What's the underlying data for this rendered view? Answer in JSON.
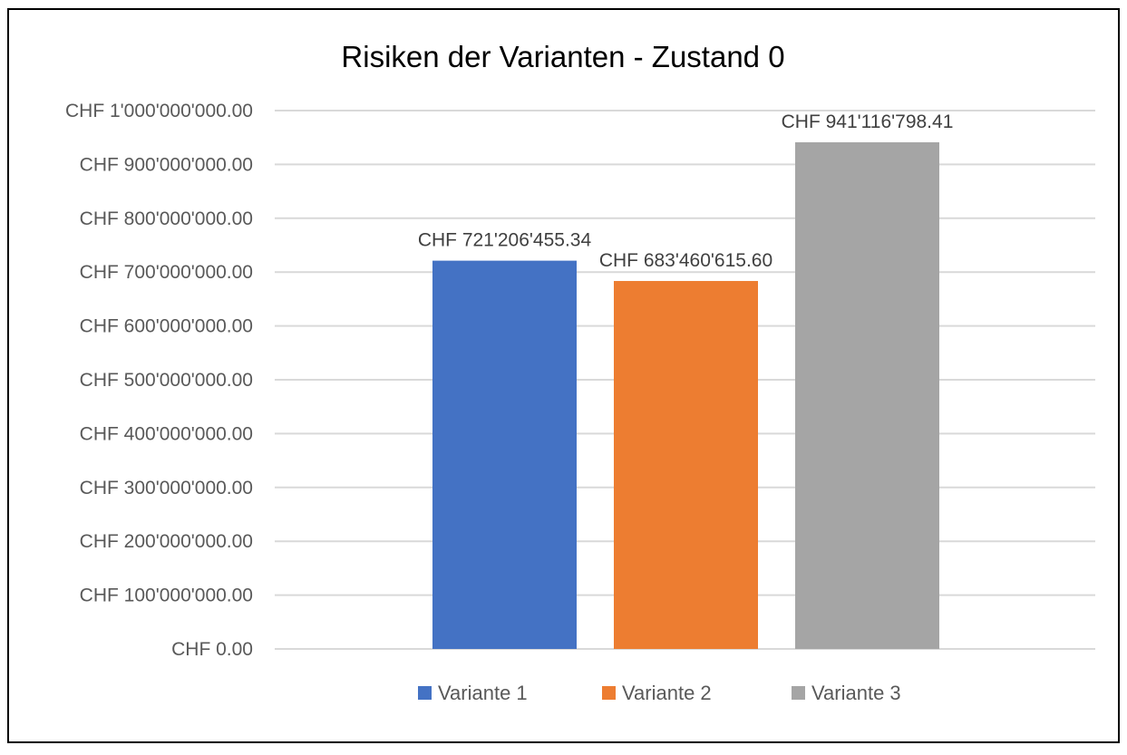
{
  "chart_data": {
    "type": "bar",
    "title": "Risiken der Varianten - Zustand 0",
    "xlabel": "",
    "ylabel": "",
    "ylim": [
      0,
      1000000000
    ],
    "ytick_step": 100000000,
    "yticks": [
      "CHF 0.00",
      "CHF 100'000'000.00",
      "CHF 200'000'000.00",
      "CHF 300'000'000.00",
      "CHF 400'000'000.00",
      "CHF 500'000'000.00",
      "CHF 600'000'000.00",
      "CHF 700'000'000.00",
      "CHF 800'000'000.00",
      "CHF 900'000'000.00",
      "CHF 1'000'000'000.00"
    ],
    "grid": true,
    "legend_position": "bottom",
    "series": [
      {
        "name": "Variante 1",
        "value": 721206455.34,
        "label": "CHF 721'206'455.34",
        "color": "#4472c4"
      },
      {
        "name": "Variante 2",
        "value": 683460615.6,
        "label": "CHF 683'460'615.60",
        "color": "#ed7d31"
      },
      {
        "name": "Variante 3",
        "value": 941116798.41,
        "label": "CHF 941'116'798.41",
        "color": "#a5a5a5"
      }
    ]
  }
}
